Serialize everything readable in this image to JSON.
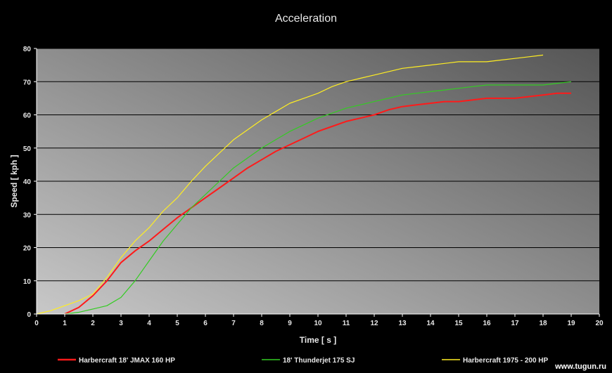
{
  "chart_data": {
    "type": "line",
    "title": "Acceleration",
    "xlabel": "Time [ s ]",
    "ylabel": "Speed  [ kph ]",
    "xlim": [
      0,
      20
    ],
    "ylim": [
      0,
      80
    ],
    "x_ticks": [
      0,
      1,
      2,
      3,
      4,
      5,
      6,
      7,
      8,
      9,
      10,
      11,
      12,
      13,
      14,
      15,
      16,
      17,
      18,
      19,
      20
    ],
    "y_ticks": [
      0,
      10,
      20,
      30,
      40,
      50,
      60,
      70,
      80
    ],
    "grid": "horizontal",
    "legend_position": "bottom",
    "series": [
      {
        "name": "Harbercraft 18' JMAX 160 HP",
        "color": "#ff1a1a",
        "x": [
          1,
          1.5,
          2,
          2.5,
          3,
          3.5,
          4,
          4.5,
          5,
          5.5,
          6,
          6.5,
          7,
          7.5,
          8,
          8.5,
          9,
          9.5,
          10,
          10.5,
          11,
          11.5,
          12,
          12.5,
          13,
          13.5,
          14,
          14.5,
          15,
          15.5,
          16,
          16.5,
          17,
          17.5,
          18,
          18.5,
          19
        ],
        "y": [
          0,
          2,
          5.5,
          10,
          15.5,
          19,
          22,
          25.5,
          29,
          32,
          35,
          38,
          41,
          44,
          46.5,
          49,
          51,
          53,
          55,
          56.5,
          58,
          59,
          60,
          61.5,
          62.5,
          63,
          63.5,
          64,
          64,
          64.5,
          65,
          65,
          65,
          65.5,
          66,
          66.5,
          66.5
        ]
      },
      {
        "name": "18' Thunderjet 175 SJ",
        "color": "#33cc22",
        "x": [
          1,
          1.5,
          2,
          2.5,
          3,
          3.5,
          4,
          4.5,
          5,
          5.5,
          6,
          6.5,
          7,
          7.5,
          8,
          8.5,
          9,
          9.5,
          10,
          10.5,
          11,
          11.5,
          12,
          12.5,
          13,
          13.5,
          14,
          14.5,
          15,
          15.5,
          16,
          16.5,
          17,
          17.5,
          18,
          18.5,
          19
        ],
        "y": [
          0,
          0.5,
          1.5,
          2.5,
          5,
          10,
          16,
          22,
          27,
          32,
          36,
          40,
          44,
          47,
          50,
          52.5,
          55,
          57,
          59,
          60.5,
          62,
          63,
          64,
          65,
          66,
          66.5,
          67,
          67.5,
          68,
          68.5,
          69,
          69,
          69,
          69,
          69,
          69.5,
          70
        ]
      },
      {
        "name": "Harbercraft 1975 - 200 HP",
        "color": "#ffee22",
        "x": [
          0,
          0.5,
          1,
          1.5,
          2,
          2.5,
          3,
          3.5,
          4,
          4.5,
          5,
          5.5,
          6,
          6.5,
          7,
          7.5,
          8,
          8.5,
          9,
          9.5,
          10,
          10.5,
          11,
          11.5,
          12,
          12.5,
          13,
          13.5,
          14,
          14.5,
          15,
          15.5,
          16,
          16.5,
          17,
          17.5,
          18
        ],
        "y": [
          0,
          1,
          2.5,
          4,
          6,
          11,
          17,
          22,
          26,
          31,
          35,
          40,
          44.5,
          48.5,
          52.5,
          55.5,
          58.5,
          61,
          63.5,
          65,
          66.5,
          68.5,
          70,
          71,
          72,
          73,
          74,
          74.5,
          75,
          75.5,
          76,
          76,
          76,
          76.5,
          77,
          77.5,
          78
        ]
      }
    ]
  },
  "watermark": "www.tugun.ru"
}
